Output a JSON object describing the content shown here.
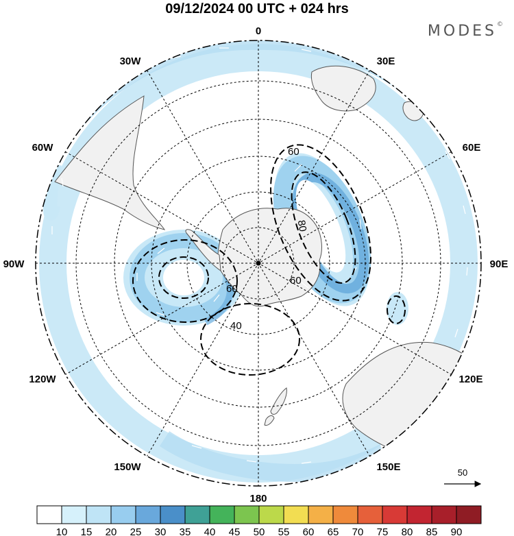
{
  "title": "09/12/2024  00 UTC  + 024 hrs",
  "brand": {
    "name": "MODES",
    "mark": "©"
  },
  "longitude_labels": [
    "0",
    "30E",
    "60E",
    "90E",
    "120E",
    "150E",
    "180",
    "150W",
    "120W",
    "90W",
    "60W",
    "30W"
  ],
  "contour_labels": [
    "60",
    "80",
    "60",
    "60",
    "40"
  ],
  "vector_reference": {
    "value": "50"
  },
  "colorbar": {
    "ticks": [
      "10",
      "15",
      "20",
      "25",
      "30",
      "35",
      "40",
      "45",
      "50",
      "55",
      "60",
      "65",
      "70",
      "75",
      "80",
      "85",
      "90"
    ],
    "colors": [
      "#ffffff",
      "#d6f1fb",
      "#bfe4f6",
      "#98cdef",
      "#69a8dc",
      "#4a8fc9",
      "#3fa196",
      "#44b35a",
      "#7cc54f",
      "#bcd94a",
      "#f2dd52",
      "#f4b047",
      "#ef8a3b",
      "#e6603a",
      "#d83a36",
      "#c22531",
      "#a81f2a",
      "#8f1c24"
    ]
  },
  "colors": {
    "land": "#f1f1f1",
    "coast": "#555555",
    "wind_light": "#c8e8f7",
    "wind_mid": "#9fd2ef",
    "wind_strong": "#6aaddd"
  }
}
